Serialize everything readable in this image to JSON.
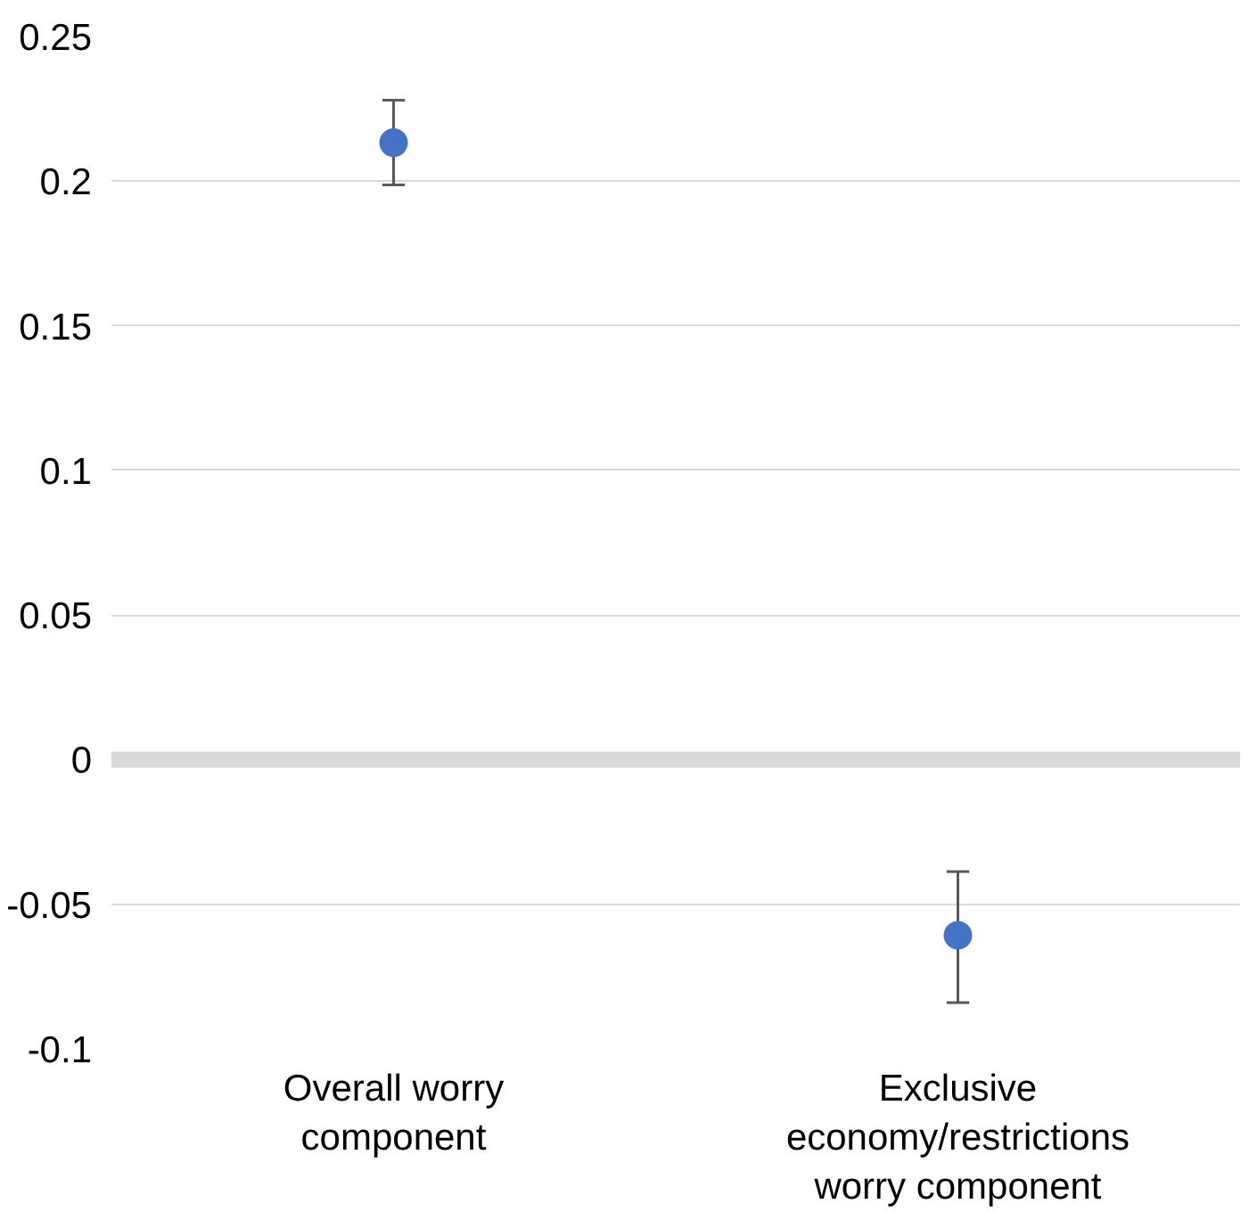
{
  "chart_data": {
    "type": "scatter",
    "categories": [
      "Overall worry component",
      "Exclusive economy/restrictions worry component"
    ],
    "series": [
      {
        "color": "#4472c4",
        "values": [
          0.2133,
          -0.0607
        ],
        "errors": [
          [
            0.1987,
            0.228
          ],
          [
            -0.084,
            -0.0387
          ]
        ]
      }
    ],
    "ylim": [
      -0.1,
      0.25
    ],
    "yticks": [
      -0.1,
      -0.05,
      0,
      0.05,
      0.1,
      0.15,
      0.2,
      0.25
    ],
    "ref_lines": [
      {
        "axis": "y",
        "value": 0,
        "color": "#d9d9d9"
      }
    ],
    "grid": "y",
    "marker": "circle"
  }
}
